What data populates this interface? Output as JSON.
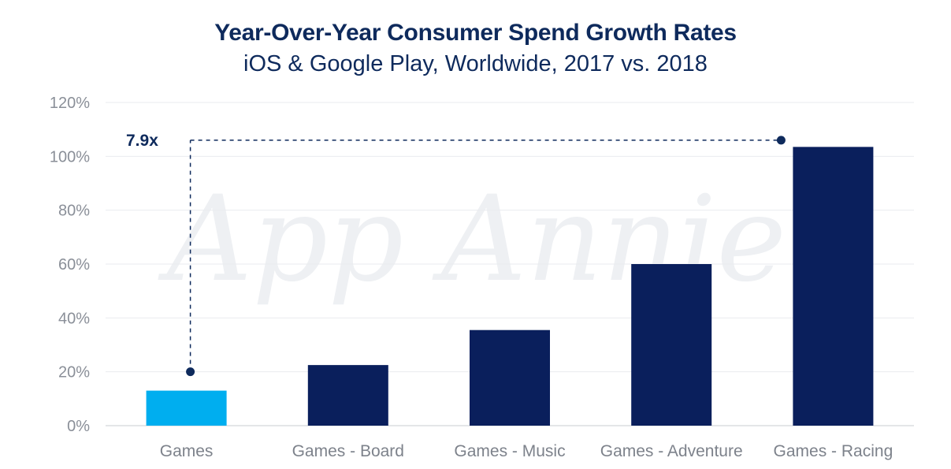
{
  "chart_data": {
    "type": "bar",
    "title": "Year-Over-Year Consumer Spend Growth Rates",
    "subtitle": "iOS & Google Play, Worldwide, 2017 vs. 2018",
    "categories": [
      "Games",
      "Games - Board",
      "Games - Music",
      "Games - Adventure",
      "Games - Racing"
    ],
    "values": [
      13,
      22.5,
      35.5,
      60,
      103.5
    ],
    "bar_colors": [
      "#00aeef",
      "#0a1f5c",
      "#0a1f5c",
      "#0a1f5c",
      "#0a1f5c"
    ],
    "ylim": [
      0,
      120
    ],
    "yticks": [
      0,
      20,
      40,
      60,
      80,
      100,
      120
    ],
    "ytick_labels": [
      "0%",
      "20%",
      "40%",
      "60%",
      "80%",
      "100%",
      "120%"
    ],
    "grid": true,
    "legend": "none",
    "annotation": {
      "text": "7.9x",
      "from_category": "Games",
      "from_value": 20,
      "to_category": "Games - Racing",
      "to_value": 104
    },
    "watermark": "App Annie"
  },
  "colors": {
    "title": "#0e2a5c",
    "accent": "#00aeef",
    "bar_dark": "#0a1f5c",
    "grid": "#e9ebef",
    "axis_text": "#8a8f98"
  }
}
